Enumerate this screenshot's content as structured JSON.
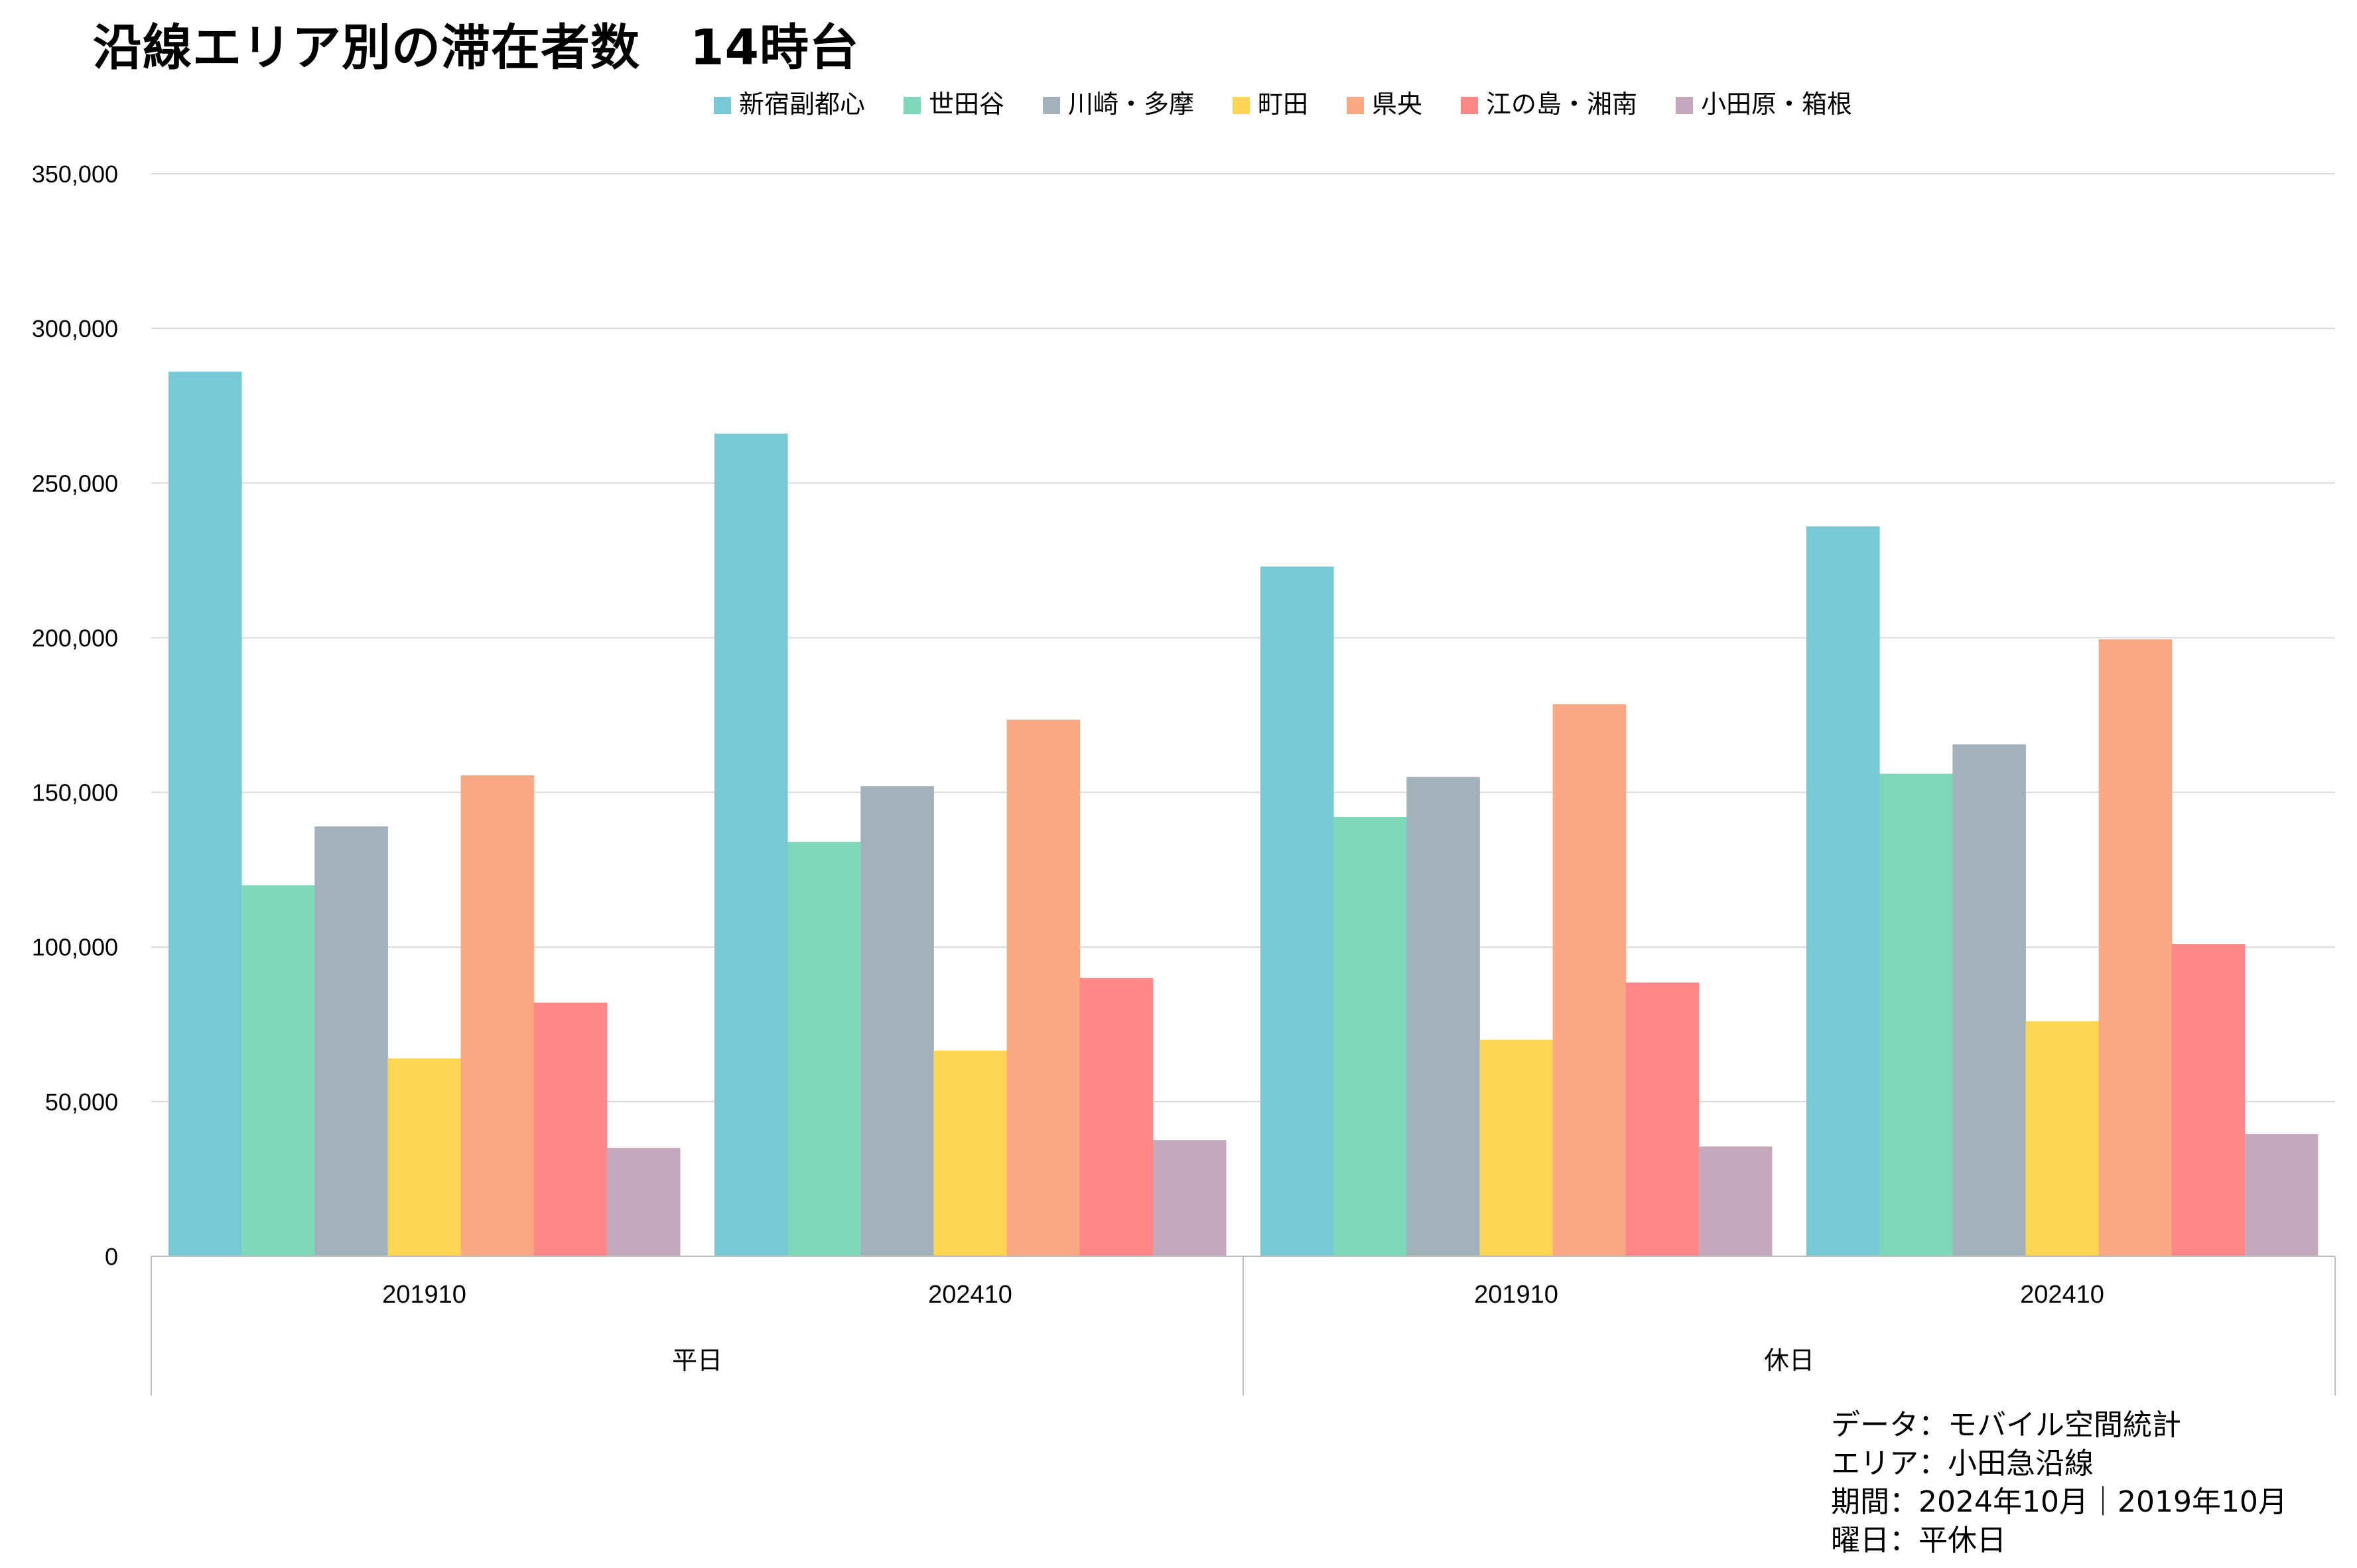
{
  "chart_data": {
    "type": "bar",
    "title": "沿線エリア別の滞在者数　14時台",
    "xlabel": "",
    "ylabel": "",
    "ylim": [
      0,
      350000
    ],
    "yticks": [
      0,
      50000,
      100000,
      150000,
      200000,
      250000,
      300000,
      350000
    ],
    "ytick_labels": [
      "0",
      "50,000",
      "100,000",
      "150,000",
      "200,000",
      "250,000",
      "300,000",
      "350,000"
    ],
    "grid": true,
    "legend_position": "top-center",
    "categories": [
      "201910",
      "202410",
      "201910",
      "202410"
    ],
    "groups": [
      {
        "label": "平日",
        "span": [
          0,
          1
        ]
      },
      {
        "label": "休日",
        "span": [
          2,
          3
        ]
      }
    ],
    "series": [
      {
        "name": "新宿副都心",
        "color": "#78C8D6",
        "values": [
          286000,
          266000,
          223000,
          236000
        ]
      },
      {
        "name": "世田谷",
        "color": "#7FD8BA",
        "values": [
          120000,
          134000,
          142000,
          156000
        ]
      },
      {
        "name": "川崎・多摩",
        "color": "#A3B1BA",
        "values": [
          139000,
          152000,
          155000,
          165500
        ]
      },
      {
        "name": "町田",
        "color": "#FCD555",
        "values": [
          64000,
          66500,
          70000,
          76000
        ]
      },
      {
        "name": "県央",
        "color": "#F8A983",
        "values": [
          155500,
          173500,
          178500,
          199500
        ]
      },
      {
        "name": "江の島・湘南",
        "color": "#FE8888",
        "values": [
          82000,
          90000,
          88500,
          101000
        ]
      },
      {
        "name": "小田原・箱根",
        "color": "#C3A9BB",
        "values": [
          35000,
          37500,
          35500,
          39500
        ]
      }
    ]
  },
  "notes": {
    "data_source": "データ：モバイル空間統計",
    "area": "エリア：小田急沿線",
    "period": "期間：2024年10月｜2019年10月",
    "day_type": "曜日：平休日"
  },
  "colors": {
    "grid": "#D9D9D9",
    "axis": "#BFBFBF"
  }
}
